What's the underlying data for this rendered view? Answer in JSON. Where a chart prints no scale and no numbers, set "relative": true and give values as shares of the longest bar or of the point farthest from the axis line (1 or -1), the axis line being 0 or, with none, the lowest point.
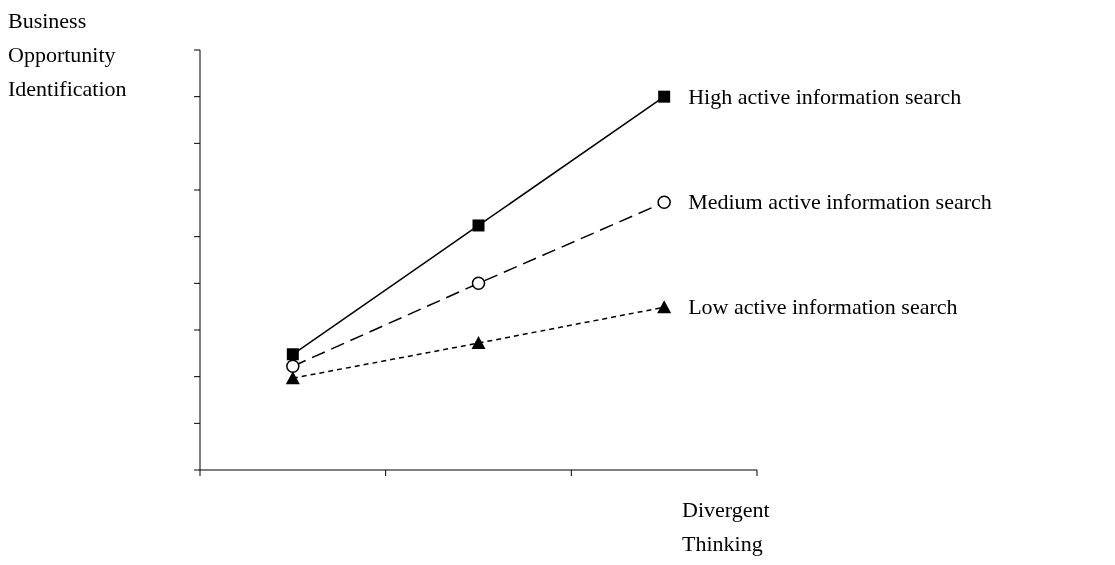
{
  "chart_data": {
    "type": "line",
    "relative": true,
    "xlabel": "Divergent Thinking",
    "ylabel": "Business Opportunity Identification",
    "categories": [
      null,
      null,
      null
    ],
    "grid": false,
    "series": [
      {
        "name": "High active information search",
        "color": "#000000",
        "marker": "square",
        "line_style": "solid",
        "values": [
          0.31,
          0.655,
          1
        ]
      },
      {
        "name": "Medium active information search",
        "color": "#000000",
        "marker": "circle",
        "line_style": "dashed",
        "values": [
          0.278,
          0.5,
          0.717
        ]
      },
      {
        "name": "Low active information search",
        "color": "#000000",
        "marker": "triangle",
        "line_style": "dotted",
        "values": [
          0.246,
          0.34,
          0.436
        ]
      }
    ]
  }
}
